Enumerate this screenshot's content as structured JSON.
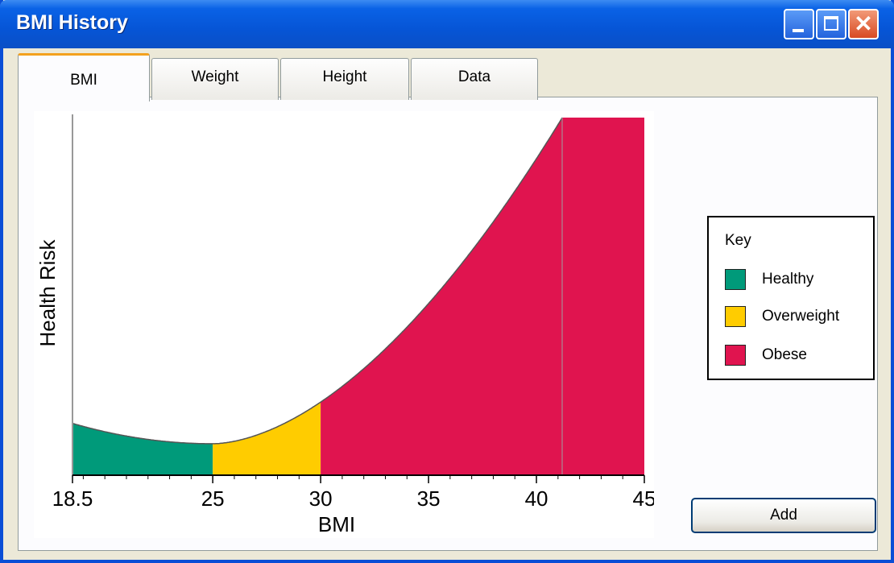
{
  "window": {
    "title": "BMI History"
  },
  "tabs": [
    {
      "label": "BMI",
      "active": true
    },
    {
      "label": "Weight",
      "active": false
    },
    {
      "label": "Height",
      "active": false
    },
    {
      "label": "Data",
      "active": false
    }
  ],
  "legend": {
    "title": "Key",
    "items": [
      {
        "label": "Healthy",
        "color": "#009a7a"
      },
      {
        "label": "Overweight",
        "color": "#ffcc00"
      },
      {
        "label": "Obese",
        "color": "#e0144f"
      }
    ]
  },
  "add_button": {
    "label": "Add"
  },
  "chart_data": {
    "type": "area",
    "xlabel": "BMI",
    "ylabel": "Health Risk",
    "xlim": [
      18.5,
      45
    ],
    "x_ticks": [
      "18.5",
      "25",
      "30",
      "35",
      "40",
      "45"
    ],
    "x_tick_values": [
      18.5,
      25,
      30,
      35,
      40,
      45
    ],
    "minor_tick_step": 1,
    "series": [
      {
        "name": "Healthy",
        "x_range": [
          18.5,
          25
        ],
        "color": "#009a7a"
      },
      {
        "name": "Overweight",
        "x_range": [
          25,
          30
        ],
        "color": "#ffcc00"
      },
      {
        "name": "Obese",
        "x_range": [
          30,
          45
        ],
        "color": "#e0144f"
      }
    ]
  }
}
